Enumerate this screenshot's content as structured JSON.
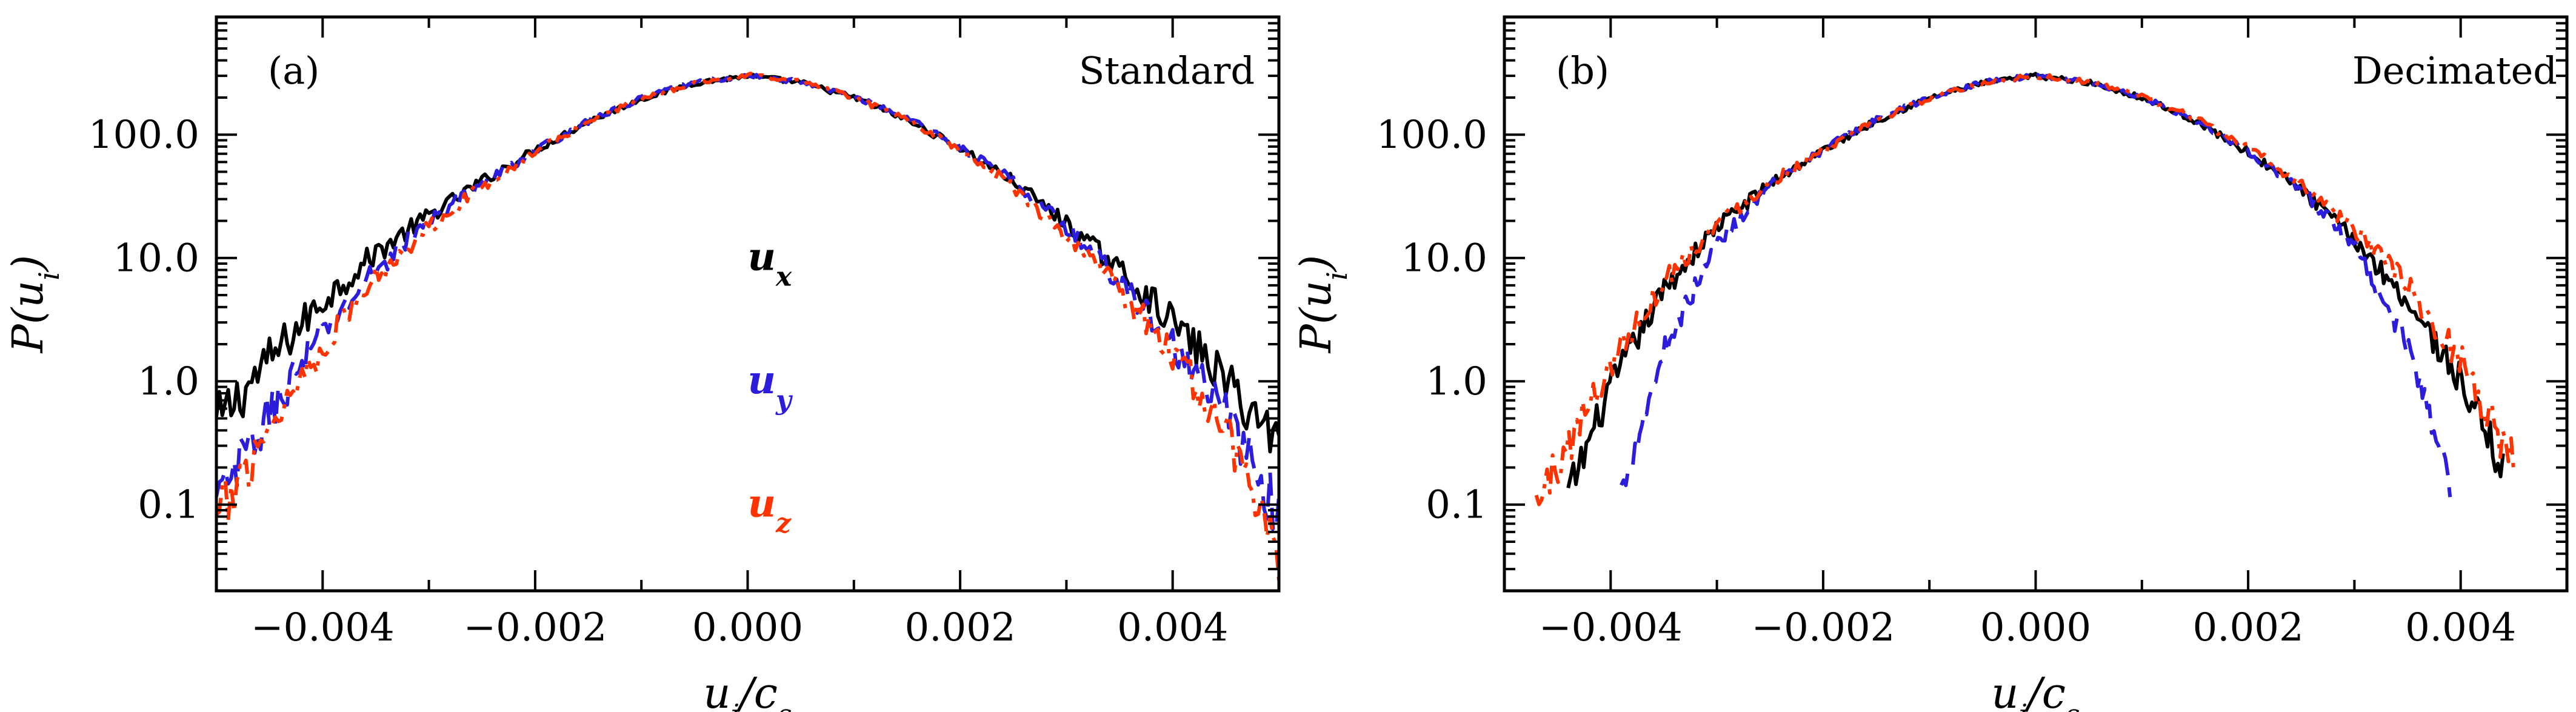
{
  "chart_data": [
    {
      "type": "line",
      "panel_label": "(a)",
      "title": "Standard",
      "xlabel": "u_i/c_s",
      "ylabel": "P(u_i)",
      "yscale": "log",
      "xlim": [
        -0.005,
        0.005
      ],
      "ylim": [
        0.02,
        900
      ],
      "xticks": [
        -0.004,
        -0.002,
        0.0,
        0.002,
        0.004
      ],
      "xtick_labels": [
        "−0.004",
        "−0.002",
        "0.000",
        "0.002",
        "0.004"
      ],
      "yticks": [
        0.1,
        1.0,
        10.0,
        100.0
      ],
      "ytick_labels": [
        "0.1",
        "1.0",
        "10.0",
        "100.0"
      ],
      "legend_placement": "center",
      "series": [
        {
          "name": "u_x",
          "color": "#000000",
          "dash": "solid",
          "x": [
            -0.005,
            -0.0045,
            -0.004,
            -0.0035,
            -0.003,
            -0.0025,
            -0.002,
            -0.0015,
            -0.001,
            -0.0005,
            0.0,
            0.0005,
            0.001,
            0.0015,
            0.002,
            0.0025,
            0.003,
            0.0035,
            0.004,
            0.0045,
            0.005
          ],
          "y": [
            0.45,
            1.5,
            4.5,
            11,
            22,
            42,
            75,
            128,
            195,
            262,
            300,
            265,
            200,
            132,
            78,
            42,
            19,
            8,
            3.1,
            1.0,
            0.32
          ]
        },
        {
          "name": "u_y",
          "color": "#2b1ddb",
          "dash": "long-dash",
          "x": [
            -0.005,
            -0.0045,
            -0.004,
            -0.0035,
            -0.003,
            -0.0025,
            -0.002,
            -0.0015,
            -0.001,
            -0.0005,
            0.0,
            0.0005,
            0.001,
            0.0015,
            0.002,
            0.0025,
            0.003,
            0.0035,
            0.004,
            0.0045,
            0.005
          ],
          "y": [
            0.1,
            0.55,
            2.5,
            8,
            20,
            40,
            74,
            128,
            198,
            265,
            300,
            268,
            205,
            138,
            80,
            42,
            18,
            6.5,
            2.0,
            0.55,
            0.08
          ]
        },
        {
          "name": "u_z",
          "color": "#ff3300",
          "dash": "dash-dot",
          "x": [
            -0.005,
            -0.0045,
            -0.004,
            -0.0035,
            -0.003,
            -0.0025,
            -0.002,
            -0.0015,
            -0.001,
            -0.0005,
            0.0,
            0.0005,
            0.001,
            0.0015,
            0.002,
            0.0025,
            0.003,
            0.0035,
            0.004,
            0.0045,
            0.005
          ],
          "y": [
            0.07,
            0.45,
            1.9,
            7,
            18,
            38,
            72,
            126,
            196,
            263,
            302,
            266,
            200,
            132,
            76,
            38,
            15,
            5.5,
            1.7,
            0.4,
            0.04
          ]
        }
      ],
      "legend_entries": [
        {
          "label": "u",
          "sub": "x",
          "color": "#000000",
          "x": 0.0,
          "y": 10.0
        },
        {
          "label": "u",
          "sub": "y",
          "color": "#2b1ddb",
          "x": 0.0,
          "y": 1.0
        },
        {
          "label": "u",
          "sub": "z",
          "color": "#ff3300",
          "x": 0.0,
          "y": 0.1
        }
      ]
    },
    {
      "type": "line",
      "panel_label": "(b)",
      "title": "Decimated",
      "xlabel": "u_i/c_s",
      "ylabel": "P(u_i)",
      "yscale": "log",
      "xlim": [
        -0.005,
        0.005
      ],
      "ylim": [
        0.02,
        900
      ],
      "xticks": [
        -0.004,
        -0.002,
        0.0,
        0.002,
        0.004
      ],
      "xtick_labels": [
        "−0.004",
        "−0.002",
        "0.000",
        "0.002",
        "0.004"
      ],
      "yticks": [
        0.1,
        1.0,
        10.0,
        100.0
      ],
      "ytick_labels": [
        "0.1",
        "1.0",
        "10.0",
        "100.0"
      ],
      "series": [
        {
          "name": "u_x",
          "color": "#000000",
          "dash": "solid",
          "x": [
            -0.0044,
            -0.004,
            -0.0035,
            -0.003,
            -0.0025,
            -0.002,
            -0.0015,
            -0.001,
            -0.0005,
            0.0,
            0.0005,
            0.001,
            0.0015,
            0.002,
            0.0025,
            0.003,
            0.0035,
            0.004,
            0.0044
          ],
          "y": [
            0.12,
            0.9,
            5.5,
            18,
            40,
            75,
            130,
            198,
            262,
            300,
            265,
            200,
            130,
            72,
            36,
            14,
            4.5,
            1.0,
            0.2
          ]
        },
        {
          "name": "u_y",
          "color": "#2b1ddb",
          "dash": "long-dash",
          "x": [
            -0.0039,
            -0.0035,
            -0.003,
            -0.0025,
            -0.002,
            -0.0015,
            -0.001,
            -0.0005,
            0.0,
            0.0005,
            0.001,
            0.0015,
            0.002,
            0.0025,
            0.003,
            0.0035,
            0.0039
          ],
          "y": [
            0.13,
            1.8,
            13,
            38,
            76,
            132,
            200,
            264,
            300,
            266,
            202,
            132,
            74,
            36,
            12,
            2.0,
            0.15
          ]
        },
        {
          "name": "u_z",
          "color": "#ff3300",
          "dash": "dash-dot",
          "x": [
            -0.0047,
            -0.0044,
            -0.004,
            -0.0035,
            -0.003,
            -0.0025,
            -0.002,
            -0.0015,
            -0.001,
            -0.0005,
            0.0,
            0.0005,
            0.001,
            0.0015,
            0.002,
            0.0025,
            0.003,
            0.0035,
            0.004,
            0.0045
          ],
          "y": [
            0.1,
            0.3,
            1.4,
            6.5,
            19,
            41,
            76,
            130,
            198,
            262,
            302,
            268,
            204,
            136,
            78,
            40,
            17,
            6.0,
            1.5,
            0.22
          ]
        }
      ]
    }
  ]
}
